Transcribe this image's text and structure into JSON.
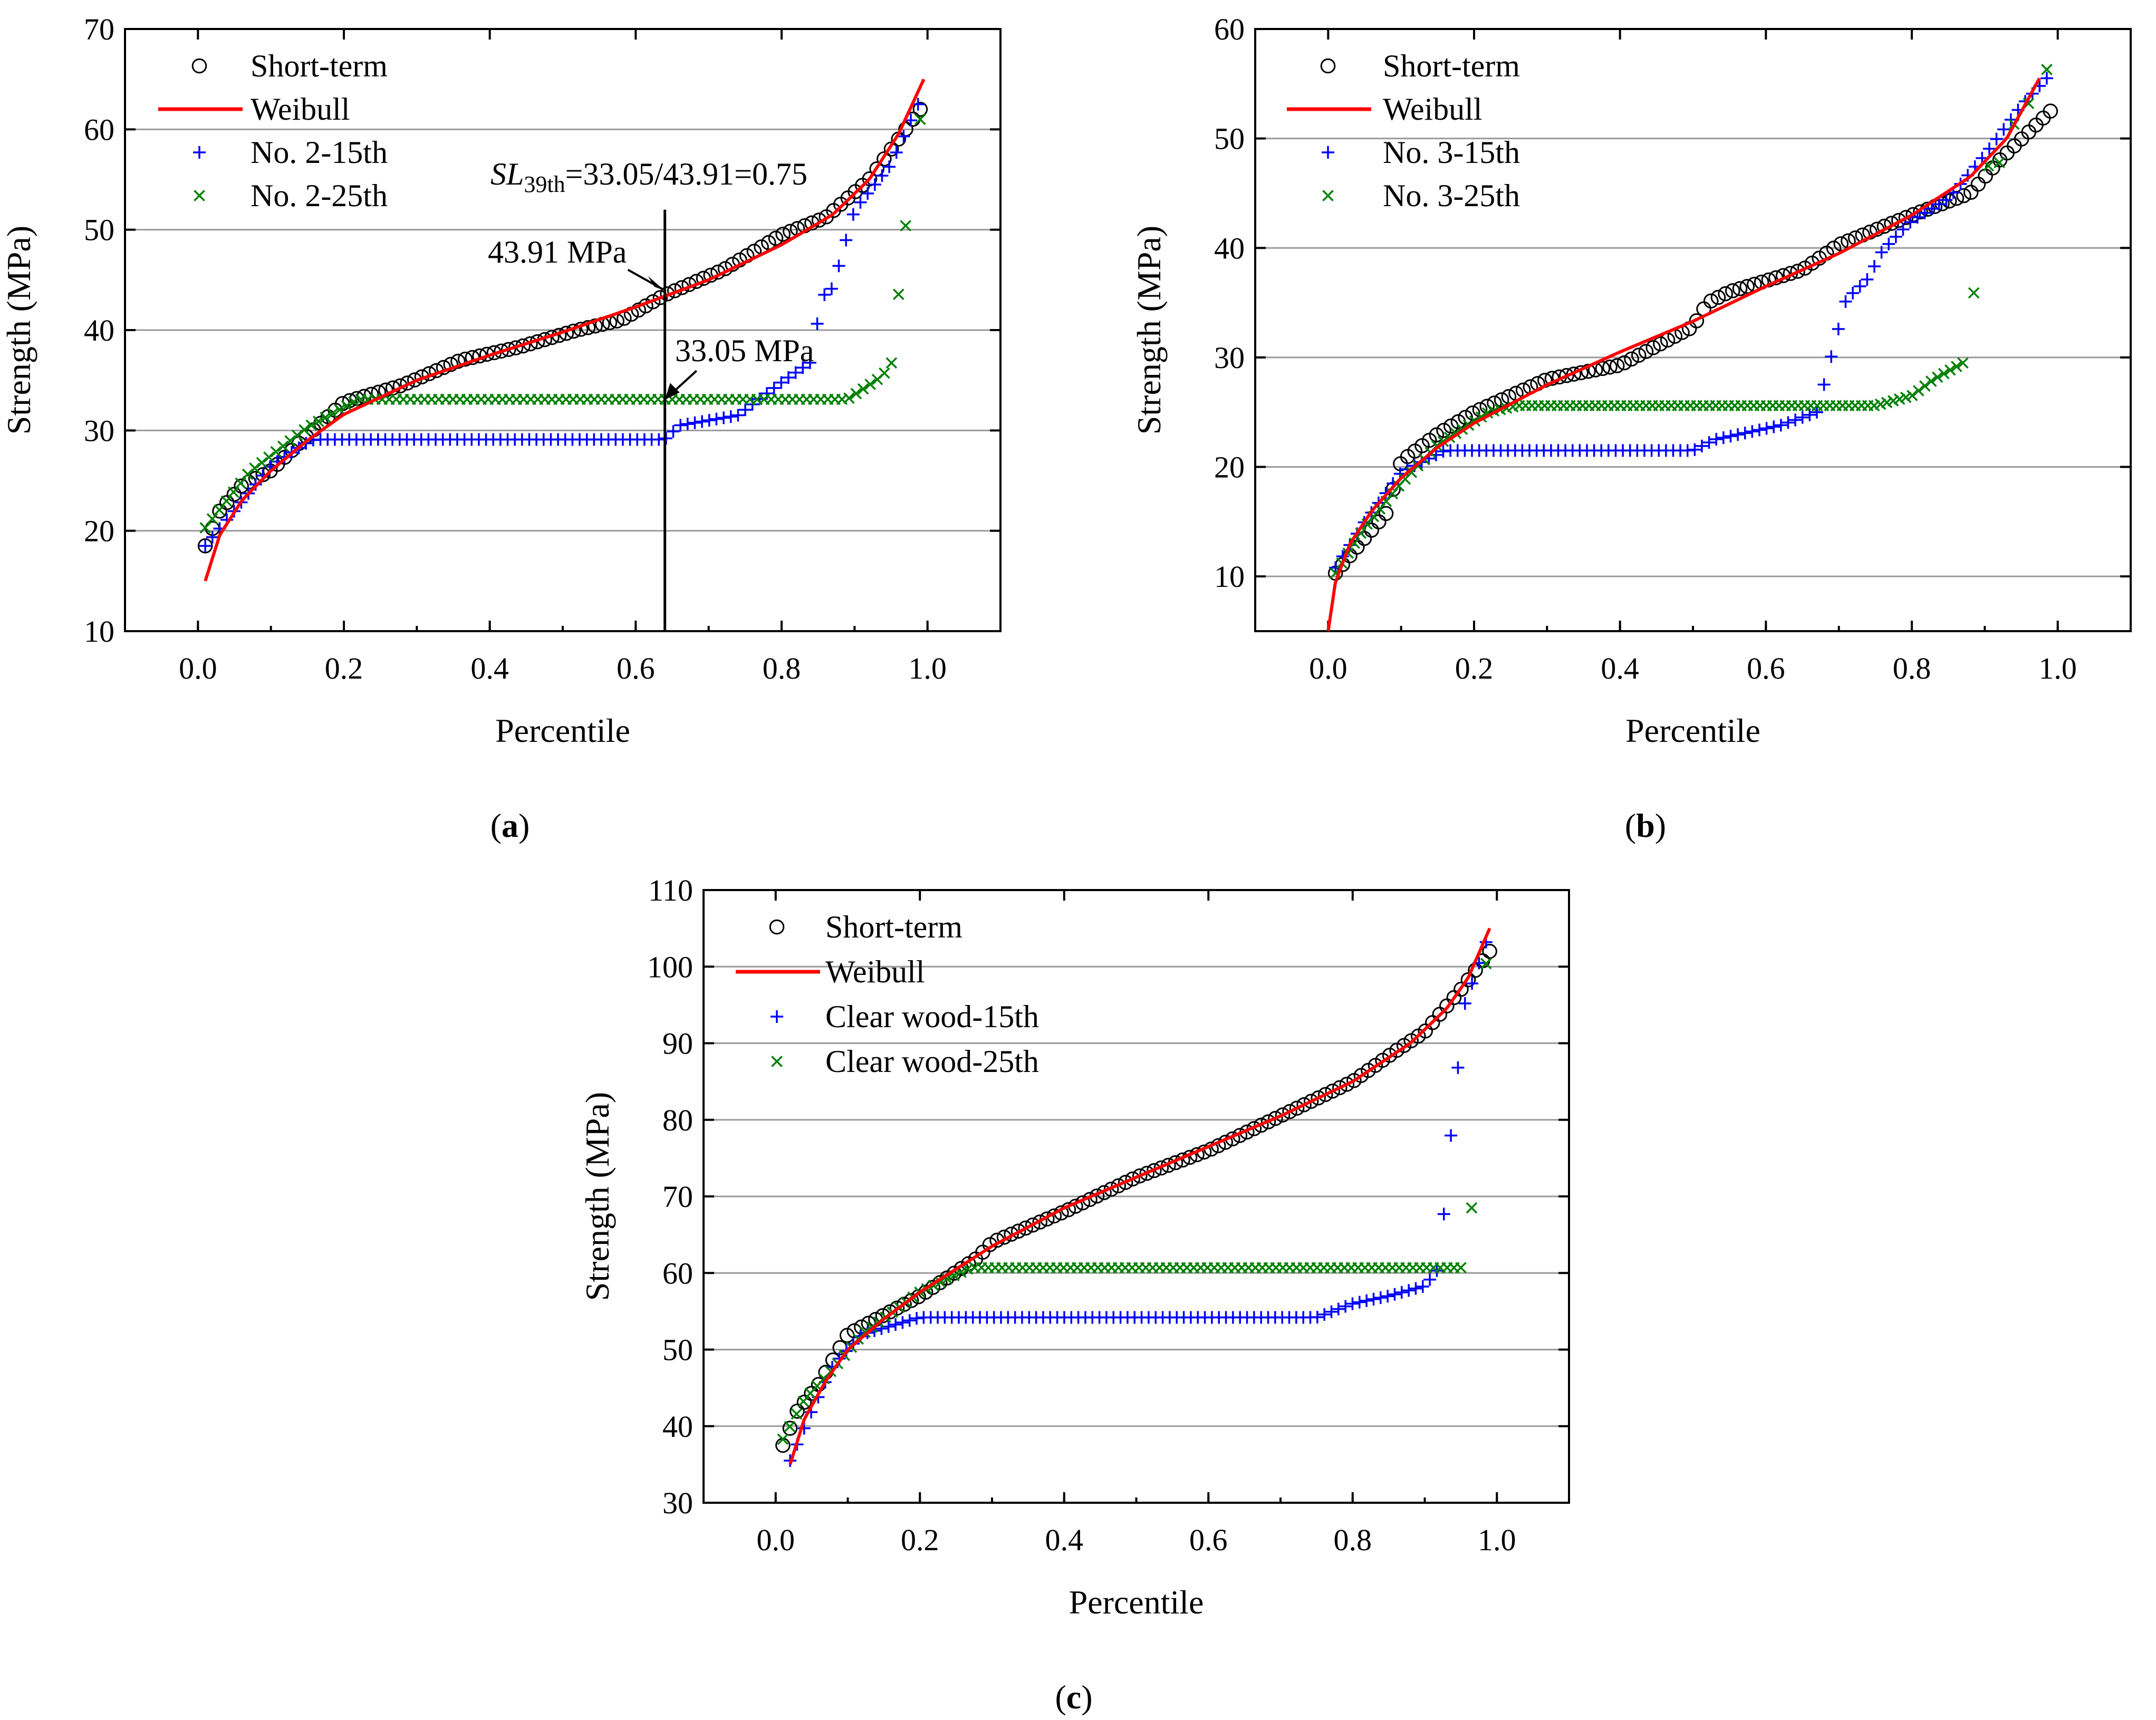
{
  "chart_data": [
    {
      "panel": "a",
      "type": "scatter",
      "panel_label": "a",
      "xlabel": "Percentile",
      "ylabel": "Strength (MPa)",
      "xlim": [
        -0.1,
        1.1
      ],
      "ylim": [
        10,
        70
      ],
      "xticks": [
        "0.0",
        "0.2",
        "0.4",
        "0.6",
        "0.8",
        "1.0"
      ],
      "xtick_values": [
        0.0,
        0.2,
        0.4,
        0.6,
        0.8,
        1.0
      ],
      "yticks": [
        "10",
        "20",
        "30",
        "40",
        "50",
        "60",
        "70"
      ],
      "ytick_values": [
        10,
        20,
        30,
        40,
        50,
        60,
        70
      ],
      "grid": true,
      "legend": [
        {
          "label": "Short-term",
          "marker": "circle",
          "color": "#000000"
        },
        {
          "label": "Weibull",
          "marker": "line",
          "color": "#ff0000"
        },
        {
          "label": "No. 2-15th",
          "marker": "plus",
          "color": "#0000ff"
        },
        {
          "label": "No. 2-25th",
          "marker": "cross",
          "color": "#008000"
        }
      ],
      "weibull": {
        "xmin": 0.01,
        "xmax": 0.995,
        "v0": 15.0,
        "v1": 65.0,
        "knots": [
          [
            0.01,
            15.0
          ],
          [
            0.03,
            19.6
          ],
          [
            0.06,
            23.0
          ],
          [
            0.1,
            26.0
          ],
          [
            0.15,
            29.0
          ],
          [
            0.2,
            31.6
          ],
          [
            0.3,
            35.0
          ],
          [
            0.4,
            37.5
          ],
          [
            0.5,
            39.8
          ],
          [
            0.6,
            42.3
          ],
          [
            0.7,
            45.0
          ],
          [
            0.8,
            48.5
          ],
          [
            0.87,
            51.5
          ],
          [
            0.92,
            55.0
          ],
          [
            0.96,
            59.5
          ],
          [
            0.995,
            65.0
          ]
        ]
      },
      "short_term": {
        "xmin": 0.01,
        "xmax": 0.99,
        "v0": 18.5,
        "v1": 62.0,
        "knots": [
          [
            0.01,
            18.5
          ],
          [
            0.03,
            22.0
          ],
          [
            0.06,
            24.5
          ],
          [
            0.1,
            26.0
          ],
          [
            0.15,
            29.5
          ],
          [
            0.2,
            32.8
          ],
          [
            0.28,
            34.5
          ],
          [
            0.36,
            37.0
          ],
          [
            0.44,
            38.3
          ],
          [
            0.52,
            40.0
          ],
          [
            0.58,
            41.0
          ],
          [
            0.64,
            43.5
          ],
          [
            0.72,
            46.0
          ],
          [
            0.8,
            49.5
          ],
          [
            0.86,
            51.2
          ],
          [
            0.92,
            55.0
          ],
          [
            0.99,
            62.0
          ]
        ]
      },
      "series_15th": {
        "xmin": 0.01,
        "xmax": 0.987,
        "v0": 18.5,
        "v1": 62.5,
        "knots": [
          [
            0.01,
            18.5
          ],
          [
            0.05,
            22.0
          ],
          [
            0.1,
            26.5
          ],
          [
            0.15,
            28.8
          ],
          [
            0.16,
            29.1
          ],
          [
            0.64,
            29.1
          ],
          [
            0.66,
            30.5
          ],
          [
            0.74,
            31.5
          ],
          [
            0.8,
            34.8
          ],
          [
            0.84,
            36.8
          ],
          [
            0.855,
            43.3
          ],
          [
            0.87,
            44.2
          ],
          [
            0.9,
            52.0
          ],
          [
            0.95,
            56.5
          ],
          [
            0.987,
            62.5
          ]
        ]
      },
      "series_25th": {
        "xmin": 0.01,
        "xmax": 0.97,
        "v0": 20.3,
        "v1": 50.4,
        "knots": [
          [
            0.01,
            20.3
          ],
          [
            0.07,
            25.8
          ],
          [
            0.15,
            30.3
          ],
          [
            0.22,
            33.1
          ],
          [
            0.89,
            33.1
          ],
          [
            0.93,
            35.0
          ],
          [
            0.95,
            36.3
          ],
          [
            0.97,
            50.4
          ]
        ]
      },
      "extra_points": [
        {
          "series": "No. 2-25th",
          "x": 0.99,
          "y": 61.0
        }
      ],
      "annotation_formula": {
        "prefix": "SL",
        "sub": "39th",
        "text": "=33.05/43.91=0.75"
      },
      "reference_x": 0.64,
      "annotations": [
        {
          "text": "43.91 MPa",
          "x": 0.64,
          "y": 43.91
        },
        {
          "text": "33.05 MPa",
          "x": 0.64,
          "y": 33.05
        }
      ]
    },
    {
      "panel": "b",
      "type": "scatter",
      "panel_label": "b",
      "xlabel": "Percentile",
      "ylabel": "Strength (MPa)",
      "xlim": [
        -0.1,
        1.1
      ],
      "ylim": [
        5,
        60
      ],
      "xticks": [
        "0.0",
        "0.2",
        "0.4",
        "0.6",
        "0.8",
        "1.0"
      ],
      "xtick_values": [
        0.0,
        0.2,
        0.4,
        0.6,
        0.8,
        1.0
      ],
      "yticks": [
        "10",
        "20",
        "30",
        "40",
        "50",
        "60"
      ],
      "ytick_values": [
        10,
        20,
        30,
        40,
        50,
        60
      ],
      "grid": true,
      "legend": [
        {
          "label": "Short-term",
          "marker": "circle",
          "color": "#000000"
        },
        {
          "label": "Weibull",
          "marker": "line",
          "color": "#ff0000"
        },
        {
          "label": "No. 3-15th",
          "marker": "plus",
          "color": "#0000ff"
        },
        {
          "label": "No. 3-25th",
          "marker": "cross",
          "color": "#008000"
        }
      ],
      "weibull": {
        "xmin": 0.0,
        "xmax": 0.975,
        "v0": 5.0,
        "v1": 55.5,
        "knots": [
          [
            0.0,
            5.0
          ],
          [
            0.01,
            9.5
          ],
          [
            0.03,
            13.0
          ],
          [
            0.06,
            16.0
          ],
          [
            0.1,
            19.0
          ],
          [
            0.15,
            21.8
          ],
          [
            0.2,
            24.0
          ],
          [
            0.3,
            27.5
          ],
          [
            0.4,
            30.5
          ],
          [
            0.5,
            33.3
          ],
          [
            0.6,
            36.5
          ],
          [
            0.7,
            39.5
          ],
          [
            0.8,
            43.0
          ],
          [
            0.88,
            46.5
          ],
          [
            0.93,
            50.0
          ],
          [
            0.975,
            55.5
          ]
        ]
      },
      "short_term": {
        "xmin": 0.01,
        "xmax": 0.99,
        "v0": 10.3,
        "v1": 52.5,
        "knots": [
          [
            0.01,
            10.3
          ],
          [
            0.05,
            13.5
          ],
          [
            0.08,
            15.8
          ],
          [
            0.1,
            20.5
          ],
          [
            0.15,
            23.0
          ],
          [
            0.2,
            25.0
          ],
          [
            0.3,
            28.0
          ],
          [
            0.4,
            29.3
          ],
          [
            0.5,
            32.8
          ],
          [
            0.52,
            35.0
          ],
          [
            0.55,
            36.0
          ],
          [
            0.65,
            38.0
          ],
          [
            0.7,
            40.3
          ],
          [
            0.8,
            43.0
          ],
          [
            0.88,
            45.0
          ],
          [
            0.92,
            48.0
          ],
          [
            0.99,
            52.5
          ]
        ]
      },
      "series_15th": {
        "xmin": 0.01,
        "xmax": 0.985,
        "v0": 10.8,
        "v1": 55.5,
        "knots": [
          [
            0.01,
            10.8
          ],
          [
            0.05,
            15.0
          ],
          [
            0.1,
            19.5
          ],
          [
            0.16,
            21.5
          ],
          [
            0.5,
            21.5
          ],
          [
            0.53,
            22.5
          ],
          [
            0.62,
            23.8
          ],
          [
            0.67,
            25.0
          ],
          [
            0.69,
            30.2
          ],
          [
            0.71,
            35.3
          ],
          [
            0.74,
            37.2
          ],
          [
            0.76,
            39.8
          ],
          [
            0.8,
            42.5
          ],
          [
            0.85,
            44.5
          ],
          [
            0.9,
            48.5
          ],
          [
            0.95,
            53.0
          ],
          [
            0.985,
            55.5
          ]
        ]
      },
      "series_25th": {
        "xmin": 0.01,
        "xmax": 0.87,
        "v0": 10.3,
        "v1": 29.5,
        "knots": [
          [
            0.01,
            10.3
          ],
          [
            0.05,
            14.5
          ],
          [
            0.1,
            18.5
          ],
          [
            0.15,
            22.0
          ],
          [
            0.22,
            25.0
          ],
          [
            0.26,
            25.6
          ],
          [
            0.75,
            25.6
          ],
          [
            0.8,
            26.5
          ],
          [
            0.83,
            28.0
          ],
          [
            0.87,
            29.5
          ]
        ]
      },
      "extra_points": [
        {
          "series": "No. 3-25th",
          "x": 0.885,
          "y": 35.9
        },
        {
          "series": "No. 3-25th",
          "x": 0.905,
          "y": 47.5
        },
        {
          "series": "No. 3-25th",
          "x": 0.92,
          "y": 47.8
        },
        {
          "series": "No. 3-25th",
          "x": 0.94,
          "y": 51.3
        },
        {
          "series": "No. 3-25th",
          "x": 0.96,
          "y": 53.2
        },
        {
          "series": "No. 3-25th",
          "x": 0.985,
          "y": 56.3
        }
      ]
    },
    {
      "panel": "c",
      "type": "scatter",
      "panel_label": "c",
      "xlabel": "Percentile",
      "ylabel": "Strength (MPa)",
      "xlim": [
        -0.1,
        1.1
      ],
      "ylim": [
        30,
        110
      ],
      "xticks": [
        "0.0",
        "0.2",
        "0.4",
        "0.6",
        "0.8",
        "1.0"
      ],
      "xtick_values": [
        0.0,
        0.2,
        0.4,
        0.6,
        0.8,
        1.0
      ],
      "yticks": [
        "30",
        "40",
        "50",
        "60",
        "70",
        "80",
        "90",
        "100",
        "110"
      ],
      "ytick_values": [
        30,
        40,
        50,
        60,
        70,
        80,
        90,
        100,
        110
      ],
      "grid": true,
      "legend": [
        {
          "label": "Short-term",
          "marker": "circle",
          "color": "#000000"
        },
        {
          "label": "Weibull",
          "marker": "line",
          "color": "#ff0000"
        },
        {
          "label": "Clear wood-15th",
          "marker": "plus",
          "color": "#0000ff"
        },
        {
          "label": "Clear wood-25th",
          "marker": "cross",
          "color": "#008000"
        }
      ],
      "weibull": {
        "xmin": 0.02,
        "xmax": 0.99,
        "v0": 35.0,
        "v1": 105.0,
        "knots": [
          [
            0.02,
            35.0
          ],
          [
            0.04,
            41.0
          ],
          [
            0.07,
            46.0
          ],
          [
            0.1,
            50.0
          ],
          [
            0.15,
            54.0
          ],
          [
            0.2,
            57.5
          ],
          [
            0.3,
            63.5
          ],
          [
            0.4,
            68.5
          ],
          [
            0.5,
            72.5
          ],
          [
            0.6,
            76.5
          ],
          [
            0.7,
            80.5
          ],
          [
            0.8,
            85.0
          ],
          [
            0.88,
            90.0
          ],
          [
            0.93,
            94.5
          ],
          [
            0.96,
            98.5
          ],
          [
            0.99,
            105.0
          ]
        ]
      },
      "short_term": {
        "xmin": 0.01,
        "xmax": 0.99,
        "v0": 37.5,
        "v1": 102.0,
        "knots": [
          [
            0.01,
            37.5
          ],
          [
            0.03,
            42.0
          ],
          [
            0.06,
            45.5
          ],
          [
            0.1,
            52.0
          ],
          [
            0.15,
            54.5
          ],
          [
            0.2,
            57.0
          ],
          [
            0.28,
            62.0
          ],
          [
            0.3,
            64.0
          ],
          [
            0.4,
            68.0
          ],
          [
            0.5,
            72.5
          ],
          [
            0.6,
            76.0
          ],
          [
            0.7,
            80.5
          ],
          [
            0.8,
            85.0
          ],
          [
            0.86,
            89.0
          ],
          [
            0.9,
            91.5
          ],
          [
            0.95,
            97.0
          ],
          [
            0.99,
            102.0
          ]
        ]
      },
      "series_15th": {
        "xmin": 0.02,
        "xmax": 0.985,
        "v0": 35.5,
        "v1": 103.2,
        "knots": [
          [
            0.02,
            35.5
          ],
          [
            0.05,
            42.0
          ],
          [
            0.08,
            48.0
          ],
          [
            0.12,
            52.0
          ],
          [
            0.2,
            54.2
          ],
          [
            0.75,
            54.2
          ],
          [
            0.8,
            56.0
          ],
          [
            0.85,
            57.0
          ],
          [
            0.9,
            58.3
          ],
          [
            0.92,
            60.7
          ],
          [
            0.935,
            76.8
          ],
          [
            0.955,
            95.0
          ],
          [
            0.97,
            99.0
          ],
          [
            0.985,
            103.2
          ]
        ]
      },
      "series_25th": {
        "xmin": 0.01,
        "xmax": 0.95,
        "v0": 38.3,
        "v1": 60.7,
        "knots": [
          [
            0.01,
            38.3
          ],
          [
            0.04,
            43.5
          ],
          [
            0.08,
            47.5
          ],
          [
            0.12,
            52.0
          ],
          [
            0.2,
            57.5
          ],
          [
            0.27,
            60.7
          ],
          [
            0.95,
            60.7
          ]
        ]
      },
      "extra_points": [
        {
          "series": "Clear wood-25th",
          "x": 0.965,
          "y": 68.5
        },
        {
          "series": "Clear wood-25th",
          "x": 0.985,
          "y": 100.4
        }
      ]
    }
  ]
}
